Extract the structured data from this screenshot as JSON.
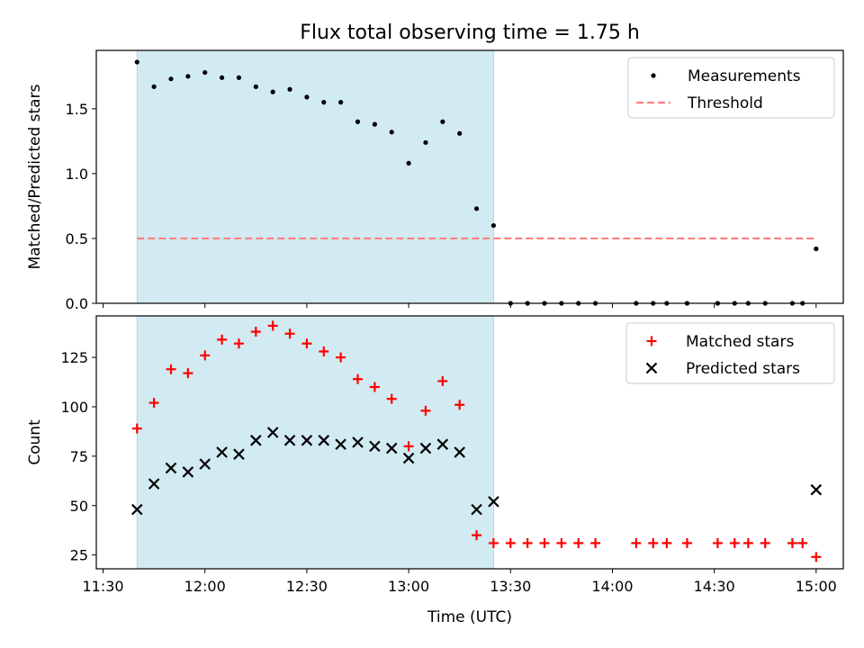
{
  "chart_data": {
    "title": "Flux total observing time = 1.75 h",
    "xlabel": "Time (UTC)",
    "x_ticks": [
      "11:30",
      "12:00",
      "12:30",
      "13:00",
      "13:30",
      "14:00",
      "14:30",
      "15:00"
    ],
    "shaded_region": {
      "from": "11:40",
      "to": "13:25",
      "color": "#add8e6"
    },
    "panels": [
      {
        "type": "scatter",
        "ylabel": "Matched/Predicted stars",
        "ylim": [
          0,
          1.95
        ],
        "y_ticks": [
          "0.0",
          "0.5",
          "1.0",
          "1.5"
        ],
        "legend_position": "upper right",
        "series": [
          {
            "name": "Measurements",
            "marker": "dot",
            "color": "#000000",
            "x": [
              "11:40",
              "11:45",
              "11:50",
              "11:55",
              "12:00",
              "12:05",
              "12:10",
              "12:15",
              "12:20",
              "12:25",
              "12:30",
              "12:35",
              "12:40",
              "12:45",
              "12:50",
              "12:55",
              "13:00",
              "13:05",
              "13:10",
              "13:15",
              "13:20",
              "13:25",
              "13:30",
              "13:35",
              "13:40",
              "13:45",
              "13:50",
              "13:55",
              "14:07",
              "14:12",
              "14:16",
              "14:22",
              "14:31",
              "14:36",
              "14:40",
              "14:45",
              "14:53",
              "14:56",
              "15:00"
            ],
            "y": [
              1.86,
              1.67,
              1.73,
              1.75,
              1.78,
              1.74,
              1.74,
              1.67,
              1.63,
              1.65,
              1.59,
              1.55,
              1.55,
              1.4,
              1.38,
              1.32,
              1.08,
              1.24,
              1.4,
              1.31,
              0.73,
              0.6,
              0,
              0,
              0,
              0,
              0,
              0,
              0,
              0,
              0,
              0,
              0,
              0,
              0,
              0,
              0,
              0,
              0.42
            ]
          },
          {
            "name": "Threshold",
            "style": "dashed",
            "color": "#ff8080",
            "x": [
              "11:40",
              "15:00"
            ],
            "y": [
              0.5,
              0.5
            ]
          }
        ]
      },
      {
        "type": "scatter",
        "ylabel": "Count",
        "ylim": [
          18,
          146
        ],
        "y_ticks": [
          "25",
          "50",
          "75",
          "100",
          "125"
        ],
        "legend_position": "upper right",
        "series": [
          {
            "name": "Matched stars",
            "marker": "plus",
            "color": "#ff0000",
            "x": [
              "11:40",
              "11:45",
              "11:50",
              "11:55",
              "12:00",
              "12:05",
              "12:10",
              "12:15",
              "12:20",
              "12:25",
              "12:30",
              "12:35",
              "12:40",
              "12:45",
              "12:50",
              "12:55",
              "13:00",
              "13:05",
              "13:10",
              "13:15",
              "13:20",
              "13:25",
              "13:30",
              "13:35",
              "13:40",
              "13:45",
              "13:50",
              "13:55",
              "14:07",
              "14:12",
              "14:16",
              "14:22",
              "14:31",
              "14:36",
              "14:40",
              "14:45",
              "14:53",
              "14:56",
              "15:00"
            ],
            "y": [
              89,
              102,
              119,
              117,
              126,
              134,
              132,
              138,
              141,
              137,
              132,
              128,
              125,
              114,
              110,
              104,
              80,
              98,
              113,
              101,
              35,
              31,
              31,
              31,
              31,
              31,
              31,
              31,
              31,
              31,
              31,
              31,
              31,
              31,
              31,
              31,
              31,
              31,
              24
            ]
          },
          {
            "name": "Predicted stars",
            "marker": "x",
            "color": "#000000",
            "x": [
              "11:40",
              "11:45",
              "11:50",
              "11:55",
              "12:00",
              "12:05",
              "12:10",
              "12:15",
              "12:20",
              "12:25",
              "12:30",
              "12:35",
              "12:40",
              "12:45",
              "12:50",
              "12:55",
              "13:00",
              "13:05",
              "13:10",
              "13:15",
              "13:20",
              "13:25",
              "15:00"
            ],
            "y": [
              48,
              61,
              69,
              67,
              71,
              77,
              76,
              83,
              87,
              83,
              83,
              83,
              81,
              82,
              80,
              79,
              74,
              79,
              81,
              77,
              48,
              52,
              58
            ]
          }
        ]
      }
    ]
  }
}
